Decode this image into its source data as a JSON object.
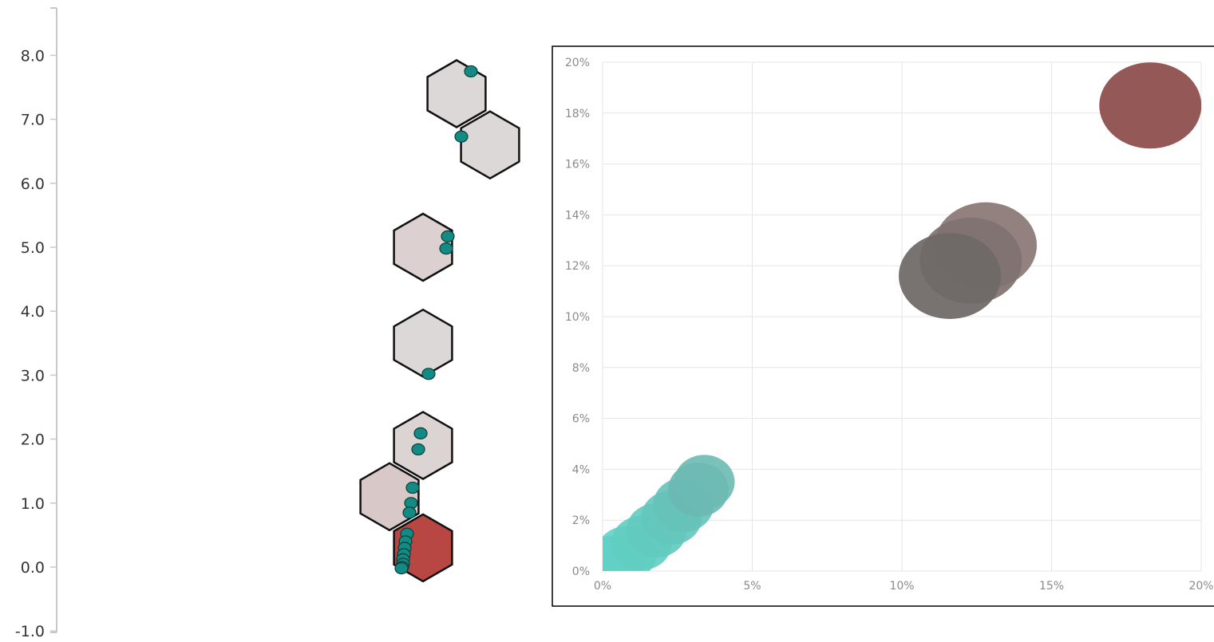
{
  "chart_data": [
    {
      "type": "scatter",
      "subtype": "hexbin",
      "y_axis": {
        "ylim": [
          -1.0,
          8.0
        ],
        "ticks": [
          "-1.0",
          "0.0",
          "1.0",
          "2.0",
          "3.0",
          "4.0",
          "5.0",
          "6.0",
          "7.0",
          "8.0"
        ]
      },
      "hexbins": [
        {
          "y": 7.4,
          "count": 1,
          "color": "#dcd8d8"
        },
        {
          "y": 6.6,
          "count": 1,
          "color": "#dcd8d8"
        },
        {
          "y": 5.0,
          "count": 2,
          "color": "#dcd0d0"
        },
        {
          "y": 3.5,
          "count": 1,
          "color": "#dcd8d8"
        },
        {
          "y": 1.9,
          "count": 2,
          "color": "#dcd3d3"
        },
        {
          "y": 1.1,
          "count": 4,
          "color": "#d9c8c8"
        },
        {
          "y": 0.3,
          "count": 8,
          "color": "#b84643"
        }
      ],
      "points": [
        {
          "y": 7.75
        },
        {
          "y": 6.73
        },
        {
          "y": 5.17
        },
        {
          "y": 4.98
        },
        {
          "y": 3.02
        },
        {
          "y": 2.09
        },
        {
          "y": 1.84
        },
        {
          "y": 1.24
        },
        {
          "y": 1.0
        },
        {
          "y": 0.85
        },
        {
          "y": 0.52
        },
        {
          "y": 0.4
        },
        {
          "y": 0.3
        },
        {
          "y": 0.2
        },
        {
          "y": 0.12
        },
        {
          "y": 0.05
        },
        {
          "y": 0.0
        },
        {
          "y": -0.02
        }
      ],
      "point_color": "#138a83"
    },
    {
      "type": "scatter",
      "subtype": "bubble",
      "x_ticks": [
        "0%",
        "5%",
        "10%",
        "15%",
        "20%"
      ],
      "y_ticks": [
        "0%",
        "2%",
        "4%",
        "6%",
        "8%",
        "10%",
        "12%",
        "14%",
        "16%",
        "18%",
        "20%"
      ],
      "xlim": [
        0,
        20
      ],
      "ylim": [
        0,
        20
      ],
      "grid": true,
      "points": [
        {
          "x": 0.3,
          "y": 0.3,
          "color": "#5fd3c6"
        },
        {
          "x": 0.8,
          "y": 0.7,
          "color": "#60d0c4"
        },
        {
          "x": 1.3,
          "y": 1.1,
          "color": "#62cdc1"
        },
        {
          "x": 1.8,
          "y": 1.6,
          "color": "#63cac0"
        },
        {
          "x": 2.3,
          "y": 2.1,
          "color": "#64c6bd"
        },
        {
          "x": 2.7,
          "y": 2.6,
          "color": "#66c2b9"
        },
        {
          "x": 3.2,
          "y": 3.2,
          "color": "#6ab9b2"
        },
        {
          "x": 3.4,
          "y": 3.5,
          "color": "#6cbab3"
        },
        {
          "x": 12.8,
          "y": 12.8,
          "color": "#8b7776"
        },
        {
          "x": 12.3,
          "y": 12.2,
          "color": "#7f7270"
        },
        {
          "x": 11.6,
          "y": 11.6,
          "color": "#6e6866"
        },
        {
          "x": 18.3,
          "y": 18.3,
          "color": "#8c4b4a"
        }
      ]
    }
  ]
}
